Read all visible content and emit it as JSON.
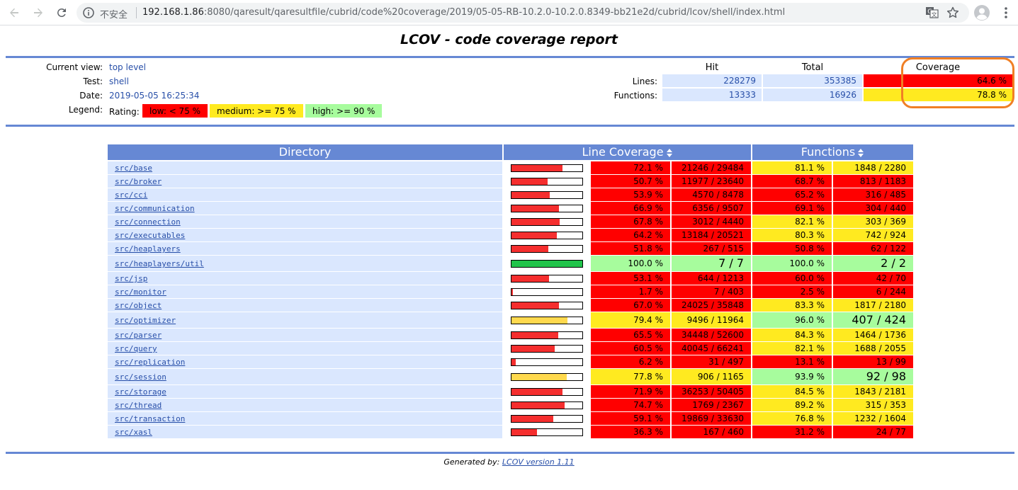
{
  "browser": {
    "insecure_label": "不安全",
    "url_host": "192.168.1.86",
    "url_rest": ":8080/qaresult/qaresultfile/cubrid/code%20coverage/2019/05-05-RB-10.2.0-10.2.0.8349-bb21e2d/cubrid/lcov/shell/index.html"
  },
  "report": {
    "title": "LCOV - code coverage report",
    "current_view_label": "Current view:",
    "current_view_value": "top level",
    "test_label": "Test:",
    "test_value": "shell",
    "date_label": "Date:",
    "date_value": "2019-05-05 16:25:34",
    "legend_label": "Legend:",
    "rating_label": "Rating:",
    "legend_low": "low: < 75 %",
    "legend_medium": "medium: >= 75 %",
    "legend_high": "high: >= 90 %"
  },
  "summary": {
    "head_hit": "Hit",
    "head_total": "Total",
    "head_coverage": "Coverage",
    "lines_label": "Lines:",
    "lines_hit": "228279",
    "lines_total": "353385",
    "lines_cov": "64.6 %",
    "functions_label": "Functions:",
    "functions_hit": "13333",
    "functions_total": "16926",
    "functions_cov": "78.8 %"
  },
  "colors": {
    "low": "#ff0000",
    "medium": "#ffea20",
    "high": "#a7fc9d",
    "bar_low": "#f52e2e",
    "bar_medium": "#ffd94e",
    "bar_high": "#21c44a",
    "header_blue": "#6688d4",
    "row_blue": "#dae7fe"
  },
  "table": {
    "col_directory": "Directory",
    "col_line_coverage": "Line Coverage",
    "col_functions": "Functions",
    "rows": [
      {
        "dir": "src/base",
        "line_pct": "72.1 %",
        "line_val": 72.1,
        "line_frac": "21246 / 29484",
        "line_rate": "low",
        "fn_pct": "81.1 %",
        "fn_frac": "1848 / 2280",
        "fn_rate": "medium"
      },
      {
        "dir": "src/broker",
        "line_pct": "50.7 %",
        "line_val": 50.7,
        "line_frac": "11977 / 23640",
        "line_rate": "low",
        "fn_pct": "68.7 %",
        "fn_frac": "813 / 1183",
        "fn_rate": "low"
      },
      {
        "dir": "src/cci",
        "line_pct": "53.9 %",
        "line_val": 53.9,
        "line_frac": "4570 / 8478",
        "line_rate": "low",
        "fn_pct": "65.2 %",
        "fn_frac": "316 / 485",
        "fn_rate": "low"
      },
      {
        "dir": "src/communication",
        "line_pct": "66.9 %",
        "line_val": 66.9,
        "line_frac": "6356 / 9507",
        "line_rate": "low",
        "fn_pct": "69.1 %",
        "fn_frac": "304 / 440",
        "fn_rate": "low"
      },
      {
        "dir": "src/connection",
        "line_pct": "67.8 %",
        "line_val": 67.8,
        "line_frac": "3012 / 4440",
        "line_rate": "low",
        "fn_pct": "82.1 %",
        "fn_frac": "303 / 369",
        "fn_rate": "medium"
      },
      {
        "dir": "src/executables",
        "line_pct": "64.2 %",
        "line_val": 64.2,
        "line_frac": "13184 / 20521",
        "line_rate": "low",
        "fn_pct": "80.3 %",
        "fn_frac": "742 / 924",
        "fn_rate": "medium"
      },
      {
        "dir": "src/heaplayers",
        "line_pct": "51.8 %",
        "line_val": 51.8,
        "line_frac": "267 / 515",
        "line_rate": "low",
        "fn_pct": "50.8 %",
        "fn_frac": "62 / 122",
        "fn_rate": "low"
      },
      {
        "dir": "src/heaplayers/util",
        "line_pct": "100.0 %",
        "line_val": 100.0,
        "line_frac": "7 / 7",
        "line_rate": "high",
        "fn_pct": "100.0 %",
        "fn_frac": "2 / 2",
        "fn_rate": "high"
      },
      {
        "dir": "src/jsp",
        "line_pct": "53.1 %",
        "line_val": 53.1,
        "line_frac": "644 / 1213",
        "line_rate": "low",
        "fn_pct": "60.0 %",
        "fn_frac": "42 / 70",
        "fn_rate": "low"
      },
      {
        "dir": "src/monitor",
        "line_pct": "1.7 %",
        "line_val": 1.7,
        "line_frac": "7 / 403",
        "line_rate": "low",
        "fn_pct": "2.5 %",
        "fn_frac": "6 / 244",
        "fn_rate": "low"
      },
      {
        "dir": "src/object",
        "line_pct": "67.0 %",
        "line_val": 67.0,
        "line_frac": "24025 / 35848",
        "line_rate": "low",
        "fn_pct": "83.3 %",
        "fn_frac": "1817 / 2180",
        "fn_rate": "medium"
      },
      {
        "dir": "src/optimizer",
        "line_pct": "79.4 %",
        "line_val": 79.4,
        "line_frac": "9496 / 11964",
        "line_rate": "medium",
        "fn_pct": "96.0 %",
        "fn_frac": "407 / 424",
        "fn_rate": "high"
      },
      {
        "dir": "src/parser",
        "line_pct": "65.5 %",
        "line_val": 65.5,
        "line_frac": "34448 / 52600",
        "line_rate": "low",
        "fn_pct": "84.3 %",
        "fn_frac": "1464 / 1736",
        "fn_rate": "medium"
      },
      {
        "dir": "src/query",
        "line_pct": "60.5 %",
        "line_val": 60.5,
        "line_frac": "40045 / 66241",
        "line_rate": "low",
        "fn_pct": "82.1 %",
        "fn_frac": "1688 / 2055",
        "fn_rate": "medium"
      },
      {
        "dir": "src/replication",
        "line_pct": "6.2 %",
        "line_val": 6.2,
        "line_frac": "31 / 497",
        "line_rate": "low",
        "fn_pct": "13.1 %",
        "fn_frac": "13 / 99",
        "fn_rate": "low"
      },
      {
        "dir": "src/session",
        "line_pct": "77.8 %",
        "line_val": 77.8,
        "line_frac": "906 / 1165",
        "line_rate": "medium",
        "fn_pct": "93.9 %",
        "fn_frac": "92 / 98",
        "fn_rate": "high"
      },
      {
        "dir": "src/storage",
        "line_pct": "71.9 %",
        "line_val": 71.9,
        "line_frac": "36253 / 50405",
        "line_rate": "low",
        "fn_pct": "84.5 %",
        "fn_frac": "1843 / 2181",
        "fn_rate": "medium"
      },
      {
        "dir": "src/thread",
        "line_pct": "74.7 %",
        "line_val": 74.7,
        "line_frac": "1769 / 2367",
        "line_rate": "low",
        "fn_pct": "89.2 %",
        "fn_frac": "315 / 353",
        "fn_rate": "medium"
      },
      {
        "dir": "src/transaction",
        "line_pct": "59.1 %",
        "line_val": 59.1,
        "line_frac": "19869 / 33630",
        "line_rate": "low",
        "fn_pct": "76.8 %",
        "fn_frac": "1232 / 1604",
        "fn_rate": "medium"
      },
      {
        "dir": "src/xasl",
        "line_pct": "36.3 %",
        "line_val": 36.3,
        "line_frac": "167 / 460",
        "line_rate": "low",
        "fn_pct": "31.2 %",
        "fn_frac": "24 / 77",
        "fn_rate": "low"
      }
    ]
  },
  "footer": {
    "generated_by": "Generated by:",
    "lcov_link": "LCOV version 1.11"
  }
}
